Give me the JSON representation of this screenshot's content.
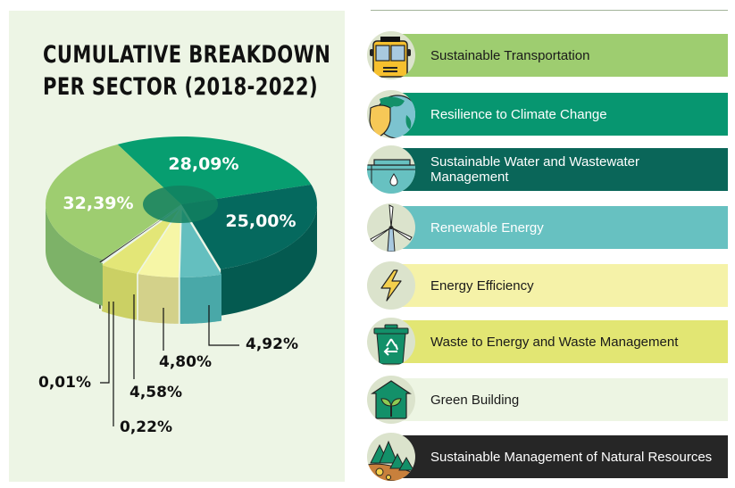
{
  "chart_data": {
    "type": "pie",
    "title": "CUMULATIVE BREAKDOWN PER SECTOR (2018-2022)",
    "title_lines": [
      "CUMULATIVE BREAKDOWN",
      "PER SECTOR (2018-2022)"
    ],
    "slices": [
      {
        "name": "Sustainable Transportation",
        "value": 32.39,
        "label": "32,39%",
        "color": "#9ecd70",
        "side_color": "#7db268"
      },
      {
        "name": "Resilience to Climate Change",
        "value": 28.09,
        "label": "28,09%",
        "color": "#079e70",
        "side_color": "#078a62"
      },
      {
        "name": "Sustainable Water and Wastewater Management",
        "value": 25.0,
        "label": "25,00%",
        "color": "#05695e",
        "side_color": "#045a50"
      },
      {
        "name": "Renewable Energy",
        "value": 4.92,
        "label": "4,92%",
        "color": "#64bfbf",
        "side_color": "#49a8a8"
      },
      {
        "name": "Energy Efficiency",
        "value": 4.8,
        "label": "4,80%",
        "color": "#f6f6a6",
        "side_color": "#d3d18a"
      },
      {
        "name": "Waste to Energy and Waste Management",
        "value": 4.58,
        "label": "4,58%",
        "color": "#e3e677",
        "side_color": "#cbd064"
      },
      {
        "name": "Green Building",
        "value": 0.22,
        "label": "0,22%",
        "color": "#e4f0ea",
        "side_color": "#e4f0ea"
      },
      {
        "name": "Sustainable Management of Natural Resources",
        "value": 0.01,
        "label": "0,01%",
        "color": "#2a2a2a",
        "side_color": "#2a2a2a"
      }
    ],
    "hole_color": "#12805f"
  },
  "legend": {
    "items": [
      {
        "label": "Sustainable Transportation",
        "icon": "bus-icon",
        "color": "#9ecd70",
        "text_color": "#1a1a1a"
      },
      {
        "label": "Resilience to Climate Change",
        "icon": "globe-shield-icon",
        "color": "#079670",
        "text_color": "#ffffff"
      },
      {
        "label": "Sustainable Water and Wastewater Management",
        "icon": "water-tank-icon",
        "color": "#0a6659",
        "text_color": "#ffffff"
      },
      {
        "label": "Renewable Energy",
        "icon": "wind-turbine-icon",
        "color": "#67c1c1",
        "text_color": "#ffffff"
      },
      {
        "label": "Energy Efficiency",
        "icon": "lightning-icon",
        "color": "#f5f2a8",
        "text_color": "#1a1a1a"
      },
      {
        "label": "Waste to Energy and Waste Management",
        "icon": "recycle-bin-icon",
        "color": "#e2e673",
        "text_color": "#1a1a1a"
      },
      {
        "label": "Green Building",
        "icon": "green-house-icon",
        "color": "#edf5e3",
        "text_color": "#1a1a1a"
      },
      {
        "label": "Sustainable Management of Natural Resources",
        "icon": "forest-icon",
        "color": "#262626",
        "text_color": "#ffffff"
      }
    ]
  }
}
